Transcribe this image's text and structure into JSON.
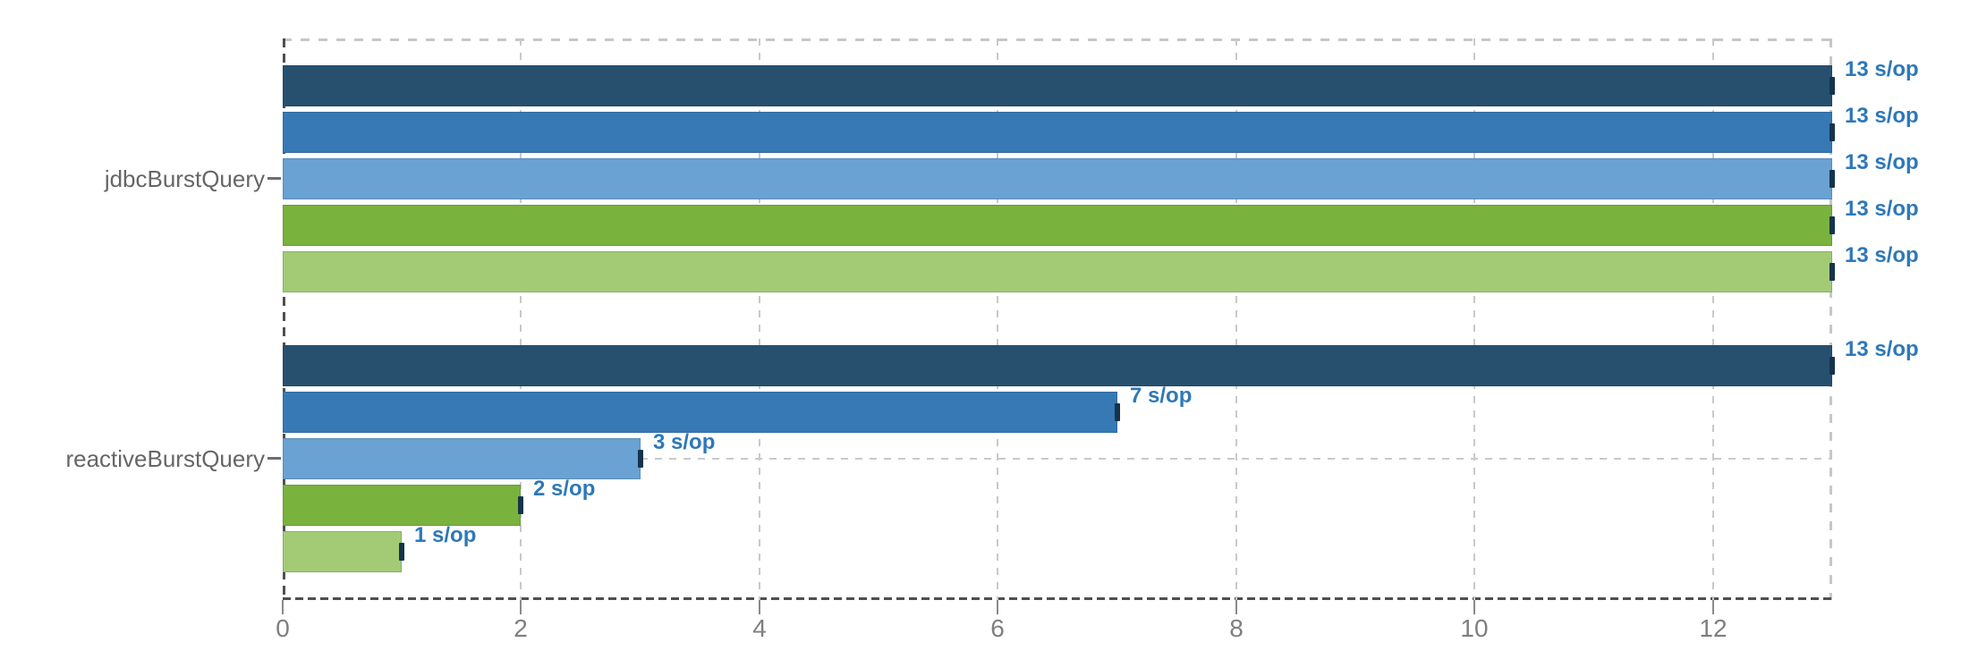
{
  "chart_data": {
    "type": "bar",
    "orientation": "horizontal",
    "unit": "s/op",
    "categories": [
      "jdbcBurstQuery",
      "reactiveBurstQuery"
    ],
    "series": [
      {
        "color": "#27506F",
        "values": [
          13,
          13
        ],
        "labels": [
          "13 s/op",
          "13 s/op"
        ]
      },
      {
        "color": "#3779B5",
        "values": [
          13,
          7
        ],
        "labels": [
          "13 s/op",
          "7 s/op"
        ]
      },
      {
        "color": "#69A2D3",
        "values": [
          13,
          3
        ],
        "labels": [
          "13 s/op",
          "3 s/op"
        ]
      },
      {
        "color": "#7AB23E",
        "values": [
          13,
          2
        ],
        "labels": [
          "13 s/op",
          "2 s/op"
        ]
      },
      {
        "color": "#A3CB76",
        "values": [
          13,
          1
        ],
        "labels": [
          "13 s/op",
          "1 s/op"
        ]
      }
    ],
    "xlim": [
      0,
      13
    ],
    "xticks": [
      "0",
      "2",
      "4",
      "6",
      "8",
      "10",
      "12"
    ],
    "xtick_values": [
      0,
      2,
      4,
      6,
      8,
      10,
      12
    ],
    "grid": true,
    "legend": "none",
    "error_bars": true,
    "colors": {
      "error_bar": "#16334C",
      "value_label": "#2E78B8",
      "tick_label": "#7F7F7F",
      "category_label": "#666666",
      "category_tick": "#6E6E6E",
      "grid_line": "#C9C9C9",
      "axis_line": "#4F4F4F"
    }
  }
}
